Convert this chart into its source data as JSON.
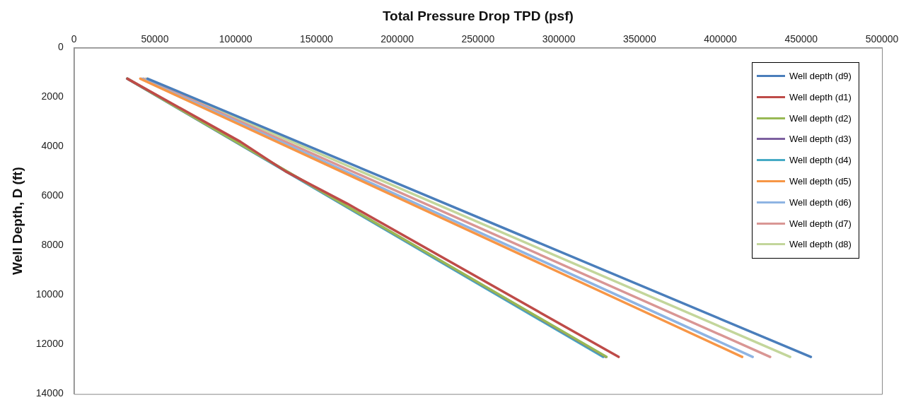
{
  "chart_data": {
    "type": "line",
    "xlabel": "Total Pressure Drop TPD (psf)",
    "ylabel": "Well Depth, D (ft)",
    "xlim": [
      0,
      500000
    ],
    "xticks": [
      0,
      50000,
      100000,
      150000,
      200000,
      250000,
      300000,
      350000,
      400000,
      450000,
      500000
    ],
    "ylim": [
      14000,
      0
    ],
    "yticks": [
      0,
      2000,
      4000,
      6000,
      8000,
      10000,
      12000,
      14000
    ],
    "grid": false,
    "legend": "top right",
    "marker": "none",
    "line_style": "solid",
    "series": [
      {
        "name": "Well depth (d9)",
        "color": "#4a7ebb",
        "x": [
          45500,
          456000
        ],
        "values": [
          1250,
          12500
        ]
      },
      {
        "name": "Well depth (d1)",
        "color": "#be4b48",
        "x": [
          33000,
          103000,
          131000,
          169000,
          337000
        ],
        "values": [
          1250,
          3800,
          5000,
          6300,
          12500
        ]
      },
      {
        "name": "Well depth (d2)",
        "color": "#98b954",
        "x": [
          33000,
          329500
        ],
        "values": [
          1250,
          12500
        ]
      },
      {
        "name": "Well depth (d3)",
        "color": "#7d60a0",
        "x": [
          33000,
          329000
        ],
        "values": [
          1250,
          12500
        ]
      },
      {
        "name": "Well depth (d4)",
        "color": "#46aac5",
        "x": [
          32800,
          327400
        ],
        "values": [
          1250,
          12500
        ]
      },
      {
        "name": "Well depth (d5)",
        "color": "#f79646",
        "x": [
          41000,
          413500
        ],
        "values": [
          1250,
          12500
        ]
      },
      {
        "name": "Well depth (d6)",
        "color": "#8eb4e3",
        "x": [
          42000,
          420000
        ],
        "values": [
          1250,
          12500
        ]
      },
      {
        "name": "Well depth (d7)",
        "color": "#d99694",
        "x": [
          43000,
          430800
        ],
        "values": [
          1250,
          12500
        ]
      },
      {
        "name": "Well depth (d8)",
        "color": "#c3d69b",
        "x": [
          44500,
          443200
        ],
        "values": [
          1250,
          12500
        ]
      }
    ]
  }
}
